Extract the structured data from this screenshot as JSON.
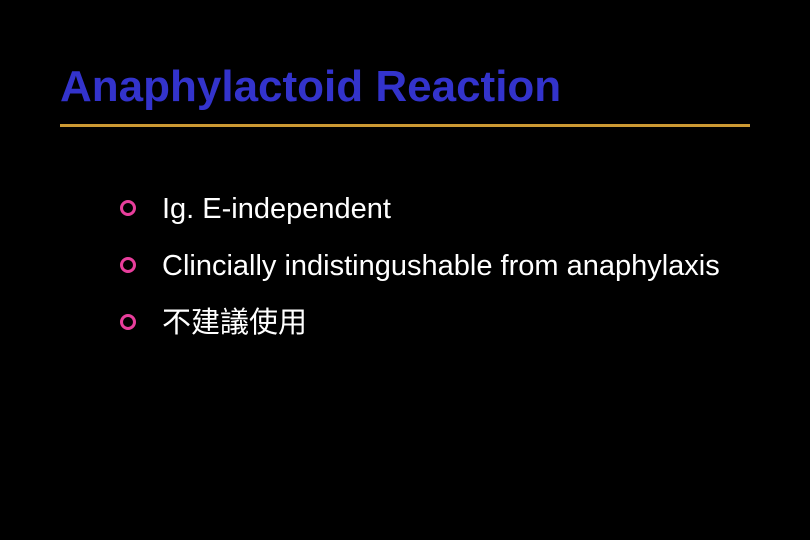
{
  "slide": {
    "title": "Anaphylactoid Reaction",
    "title_color": "#3333cc",
    "underline_color": "#cc9933",
    "background_color": "#000000",
    "bullet_marker_color": "#e83e9c",
    "text_color": "#ffffff",
    "title_fontsize": 44,
    "body_fontsize": 29,
    "bullets": [
      {
        "text": "Ig. E-independent"
      },
      {
        "text": "Clincially indistingushable from anaphylaxis"
      },
      {
        "text": "不建議使用"
      }
    ]
  }
}
